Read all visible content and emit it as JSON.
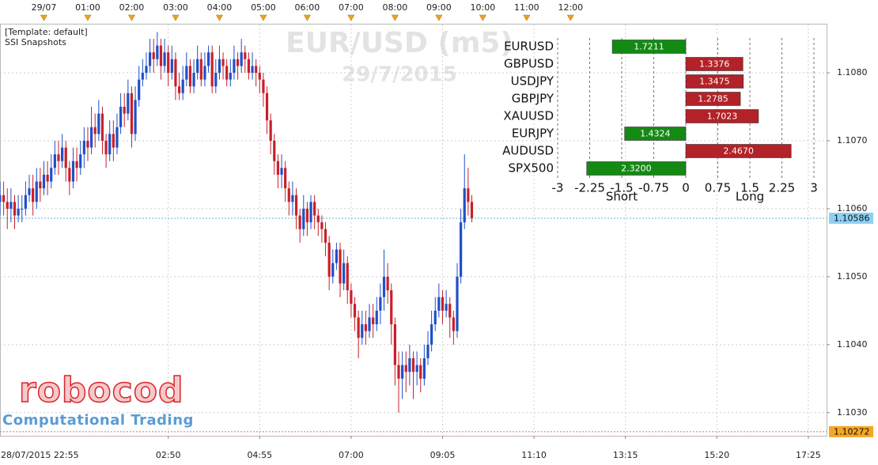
{
  "header": {
    "template": "[Template: default]",
    "indicator": "SSI Snapshots"
  },
  "watermark": {
    "title": "EUR/USD (m5)",
    "date": "29/7/2015"
  },
  "logo": {
    "name": "robocod",
    "tagline": "Computational Trading"
  },
  "chart_data": [
    {
      "type": "candlestick",
      "up_color": "#1f50c8",
      "down_color": "#c8202a",
      "open": [
        1.1061,
        1.1062,
        1.1061,
        1.106,
        1.1061,
        1.1059,
        1.106,
        1.106,
        1.1062,
        1.1063,
        1.1061,
        1.1064,
        1.1063,
        1.1065,
        1.1064,
        1.1066,
        1.1068,
        1.1067,
        1.1069,
        1.1066,
        1.1064,
        1.1067,
        1.1066,
        1.1068,
        1.107,
        1.1069,
        1.1072,
        1.1071,
        1.1074,
        1.107,
        1.1068,
        1.1071,
        1.1069,
        1.1072,
        1.1075,
        1.1074,
        1.1077,
        1.1071,
        1.1076,
        1.1079,
        1.108,
        1.1081,
        1.1083,
        1.1082,
        1.1084,
        1.1081,
        1.1083,
        1.108,
        1.1082,
        1.1078,
        1.1077,
        1.1079,
        1.1081,
        1.1078,
        1.108,
        1.1082,
        1.1079,
        1.1081,
        1.1083,
        1.1078,
        1.108,
        1.1082,
        1.1081,
        1.1079,
        1.108,
        1.1082,
        1.1081,
        1.1083,
        1.1082,
        1.108,
        1.1081,
        1.108,
        1.1079,
        1.1077,
        1.1073,
        1.107,
        1.1067,
        1.1065,
        1.1066,
        1.1063,
        1.1061,
        1.1062,
        1.1059,
        1.1057,
        1.106,
        1.1058,
        1.1061,
        1.1059,
        1.1058,
        1.1057,
        1.1055,
        1.105,
        1.1052,
        1.1054,
        1.1049,
        1.1052,
        1.1048,
        1.1046,
        1.1044,
        1.1041,
        1.1043,
        1.1042,
        1.1044,
        1.1043,
        1.1045,
        1.1047,
        1.105,
        1.1048,
        1.1043,
        1.1037,
        1.1035,
        1.1037,
        1.1036,
        1.1038,
        1.1036,
        1.1037,
        1.1035,
        1.1038,
        1.104,
        1.1043,
        1.1045,
        1.1047,
        1.1045,
        1.1046,
        1.1044,
        1.1042,
        1.105,
        1.1058,
        1.1063,
        1.1061
      ],
      "high": [
        1.1064,
        1.1064,
        1.1063,
        1.1063,
        1.1062,
        1.1062,
        1.1062,
        1.1064,
        1.1065,
        1.1065,
        1.1066,
        1.1066,
        1.1067,
        1.1067,
        1.1068,
        1.107,
        1.107,
        1.1071,
        1.107,
        1.1067,
        1.1069,
        1.1069,
        1.107,
        1.1072,
        1.1072,
        1.1075,
        1.1074,
        1.1076,
        1.1075,
        1.1071,
        1.1073,
        1.1073,
        1.1074,
        1.1077,
        1.1077,
        1.1079,
        1.1078,
        1.1078,
        1.1081,
        1.1082,
        1.1083,
        1.1085,
        1.1085,
        1.1086,
        1.1085,
        1.1085,
        1.1084,
        1.1084,
        1.1083,
        1.108,
        1.1081,
        1.1083,
        1.1082,
        1.1082,
        1.1084,
        1.1083,
        1.1083,
        1.1084,
        1.1084,
        1.1082,
        1.1084,
        1.1083,
        1.1082,
        1.1082,
        1.1084,
        1.1083,
        1.1085,
        1.1084,
        1.1083,
        1.1083,
        1.1082,
        1.1081,
        1.108,
        1.1078,
        1.1074,
        1.1071,
        1.1068,
        1.1068,
        1.1067,
        1.1064,
        1.1064,
        1.1063,
        1.106,
        1.1062,
        1.1061,
        1.1062,
        1.1062,
        1.106,
        1.1059,
        1.1058,
        1.1056,
        1.1054,
        1.1055,
        1.1055,
        1.1054,
        1.1053,
        1.1049,
        1.1047,
        1.1045,
        1.1045,
        1.1045,
        1.1046,
        1.1046,
        1.1047,
        1.1049,
        1.1054,
        1.1052,
        1.1049,
        1.1044,
        1.1039,
        1.1039,
        1.1039,
        1.104,
        1.1039,
        1.1039,
        1.1038,
        1.104,
        1.1042,
        1.1045,
        1.1047,
        1.1049,
        1.1048,
        1.1048,
        1.1047,
        1.1045,
        1.1052,
        1.106,
        1.1068,
        1.1066,
        1.1062
      ],
      "low": [
        1.1059,
        1.1059,
        1.1057,
        1.1058,
        1.1057,
        1.1058,
        1.1058,
        1.1059,
        1.1061,
        1.1059,
        1.106,
        1.1061,
        1.1062,
        1.1062,
        1.1063,
        1.1065,
        1.1065,
        1.1066,
        1.1064,
        1.1062,
        1.1063,
        1.1064,
        1.1065,
        1.1066,
        1.1067,
        1.1068,
        1.1069,
        1.107,
        1.1068,
        1.1066,
        1.1067,
        1.1067,
        1.1068,
        1.1071,
        1.1072,
        1.1073,
        1.1069,
        1.107,
        1.1075,
        1.1078,
        1.1079,
        1.108,
        1.108,
        1.1081,
        1.1079,
        1.108,
        1.1078,
        1.1079,
        1.1076,
        1.1076,
        1.1076,
        1.1078,
        1.1077,
        1.1077,
        1.1079,
        1.1078,
        1.1078,
        1.108,
        1.1077,
        1.1077,
        1.1079,
        1.1079,
        1.1078,
        1.1078,
        1.1079,
        1.1079,
        1.108,
        1.108,
        1.1079,
        1.1079,
        1.1078,
        1.1077,
        1.1075,
        1.1071,
        1.1068,
        1.1065,
        1.1063,
        1.1063,
        1.1061,
        1.1059,
        1.1059,
        1.1057,
        1.1055,
        1.1056,
        1.1056,
        1.1057,
        1.1057,
        1.1056,
        1.1055,
        1.1053,
        1.1048,
        1.1049,
        1.1051,
        1.1047,
        1.1048,
        1.1046,
        1.1044,
        1.1042,
        1.1038,
        1.104,
        1.104,
        1.1041,
        1.1041,
        1.1042,
        1.1043,
        1.1045,
        1.1046,
        1.104,
        1.1034,
        1.103,
        1.1032,
        1.1033,
        1.1034,
        1.1032,
        1.1034,
        1.1033,
        1.1034,
        1.1037,
        1.1039,
        1.1042,
        1.1044,
        1.1043,
        1.1044,
        1.1041,
        1.104,
        1.1041,
        1.1049,
        1.1057,
        1.1059,
        1.1058
      ],
      "close": [
        1.1062,
        1.1061,
        1.106,
        1.1061,
        1.1059,
        1.106,
        1.106,
        1.1062,
        1.1063,
        1.1061,
        1.1064,
        1.1063,
        1.1065,
        1.1064,
        1.1066,
        1.1068,
        1.1067,
        1.1069,
        1.1066,
        1.1064,
        1.1067,
        1.1066,
        1.1068,
        1.107,
        1.1069,
        1.1072,
        1.1071,
        1.1074,
        1.107,
        1.1068,
        1.1071,
        1.1069,
        1.1072,
        1.1075,
        1.1074,
        1.1077,
        1.1071,
        1.1076,
        1.1079,
        1.108,
        1.1081,
        1.1083,
        1.1082,
        1.1084,
        1.1081,
        1.1083,
        1.108,
        1.1082,
        1.1078,
        1.1077,
        1.1079,
        1.1081,
        1.1078,
        1.108,
        1.1082,
        1.1079,
        1.1081,
        1.1083,
        1.1078,
        1.108,
        1.1082,
        1.1081,
        1.1079,
        1.108,
        1.1082,
        1.1081,
        1.1083,
        1.1082,
        1.108,
        1.1081,
        1.108,
        1.1079,
        1.1077,
        1.1073,
        1.107,
        1.1067,
        1.1065,
        1.1066,
        1.1063,
        1.1061,
        1.1062,
        1.1059,
        1.1057,
        1.106,
        1.1058,
        1.1061,
        1.1059,
        1.1058,
        1.1057,
        1.1055,
        1.105,
        1.1052,
        1.1054,
        1.1049,
        1.1052,
        1.1048,
        1.1046,
        1.1044,
        1.1041,
        1.1043,
        1.1042,
        1.1044,
        1.1043,
        1.1045,
        1.1047,
        1.105,
        1.1048,
        1.1043,
        1.1037,
        1.1035,
        1.1037,
        1.1036,
        1.1038,
        1.1036,
        1.1037,
        1.1035,
        1.1038,
        1.104,
        1.1043,
        1.1045,
        1.1047,
        1.1045,
        1.1046,
        1.1044,
        1.1042,
        1.105,
        1.1058,
        1.1063,
        1.1061,
        1.10586
      ],
      "xlim": [
        0,
        226
      ],
      "xticks": [
        {
          "value": -1,
          "label": "28/07/2015 22:55"
        },
        {
          "value": 46,
          "label": "02:50"
        },
        {
          "value": 71,
          "label": "04:55"
        },
        {
          "value": 96,
          "label": "07:00"
        },
        {
          "value": 121,
          "label": "09:05"
        },
        {
          "value": 146,
          "label": "11:10"
        },
        {
          "value": 171,
          "label": "13:15"
        },
        {
          "value": 196,
          "label": "15:20"
        },
        {
          "value": 221,
          "label": "17:25"
        }
      ],
      "xticks_top": [
        {
          "value": 12,
          "label": "29/07"
        },
        {
          "value": 24,
          "label": "01:00"
        },
        {
          "value": 36,
          "label": "02:00"
        },
        {
          "value": 48,
          "label": "03:00"
        },
        {
          "value": 60,
          "label": "04:00"
        },
        {
          "value": 72,
          "label": "05:00"
        },
        {
          "value": 84,
          "label": "06:00"
        },
        {
          "value": 96,
          "label": "07:00"
        },
        {
          "value": 108,
          "label": "08:00"
        },
        {
          "value": 120,
          "label": "09:00"
        },
        {
          "value": 132,
          "label": "10:00"
        },
        {
          "value": 144,
          "label": "11:00"
        },
        {
          "value": 156,
          "label": "12:00"
        }
      ],
      "ylim": [
        1.10266,
        1.10871
      ],
      "yticks": [
        {
          "value": 1.103,
          "label": "1.1030"
        },
        {
          "value": 1.104,
          "label": "1.1040"
        },
        {
          "value": 1.105,
          "label": "1.1050"
        },
        {
          "value": 1.106,
          "label": "1.1060"
        },
        {
          "value": 1.107,
          "label": "1.1070"
        },
        {
          "value": 1.108,
          "label": "1.1080"
        }
      ],
      "price_lines": [
        {
          "value": 1.10586,
          "color": "#8dd0f4"
        },
        {
          "value": 1.10272,
          "color": "#f5a623"
        }
      ],
      "grid": true
    },
    {
      "type": "bar",
      "categories": [
        "EURUSD",
        "GBPUSD",
        "USDJPY",
        "GBPJPY",
        "XAUUSD",
        "EURJPY",
        "AUDUSD",
        "SPX500"
      ],
      "values": [
        -1.7211,
        1.3376,
        1.3475,
        1.2785,
        1.7023,
        -1.4324,
        2.467,
        -2.32
      ],
      "value_labels": [
        "1.7211",
        "1.3376",
        "1.3475",
        "1.2785",
        "1.7023",
        "1.4324",
        "2.4670",
        "2.3200"
      ],
      "colors": [
        "#148a14",
        "#b22228",
        "#b22228",
        "#b22228",
        "#b22228",
        "#148a14",
        "#b22228",
        "#148a14"
      ],
      "xlim": [
        -3,
        3
      ],
      "xticks": [
        -3,
        -2.25,
        -1.5,
        -0.75,
        0,
        0.75,
        1.5,
        2.25,
        3
      ],
      "axis_labels": [
        "Short",
        "Long"
      ],
      "grid": true
    }
  ]
}
